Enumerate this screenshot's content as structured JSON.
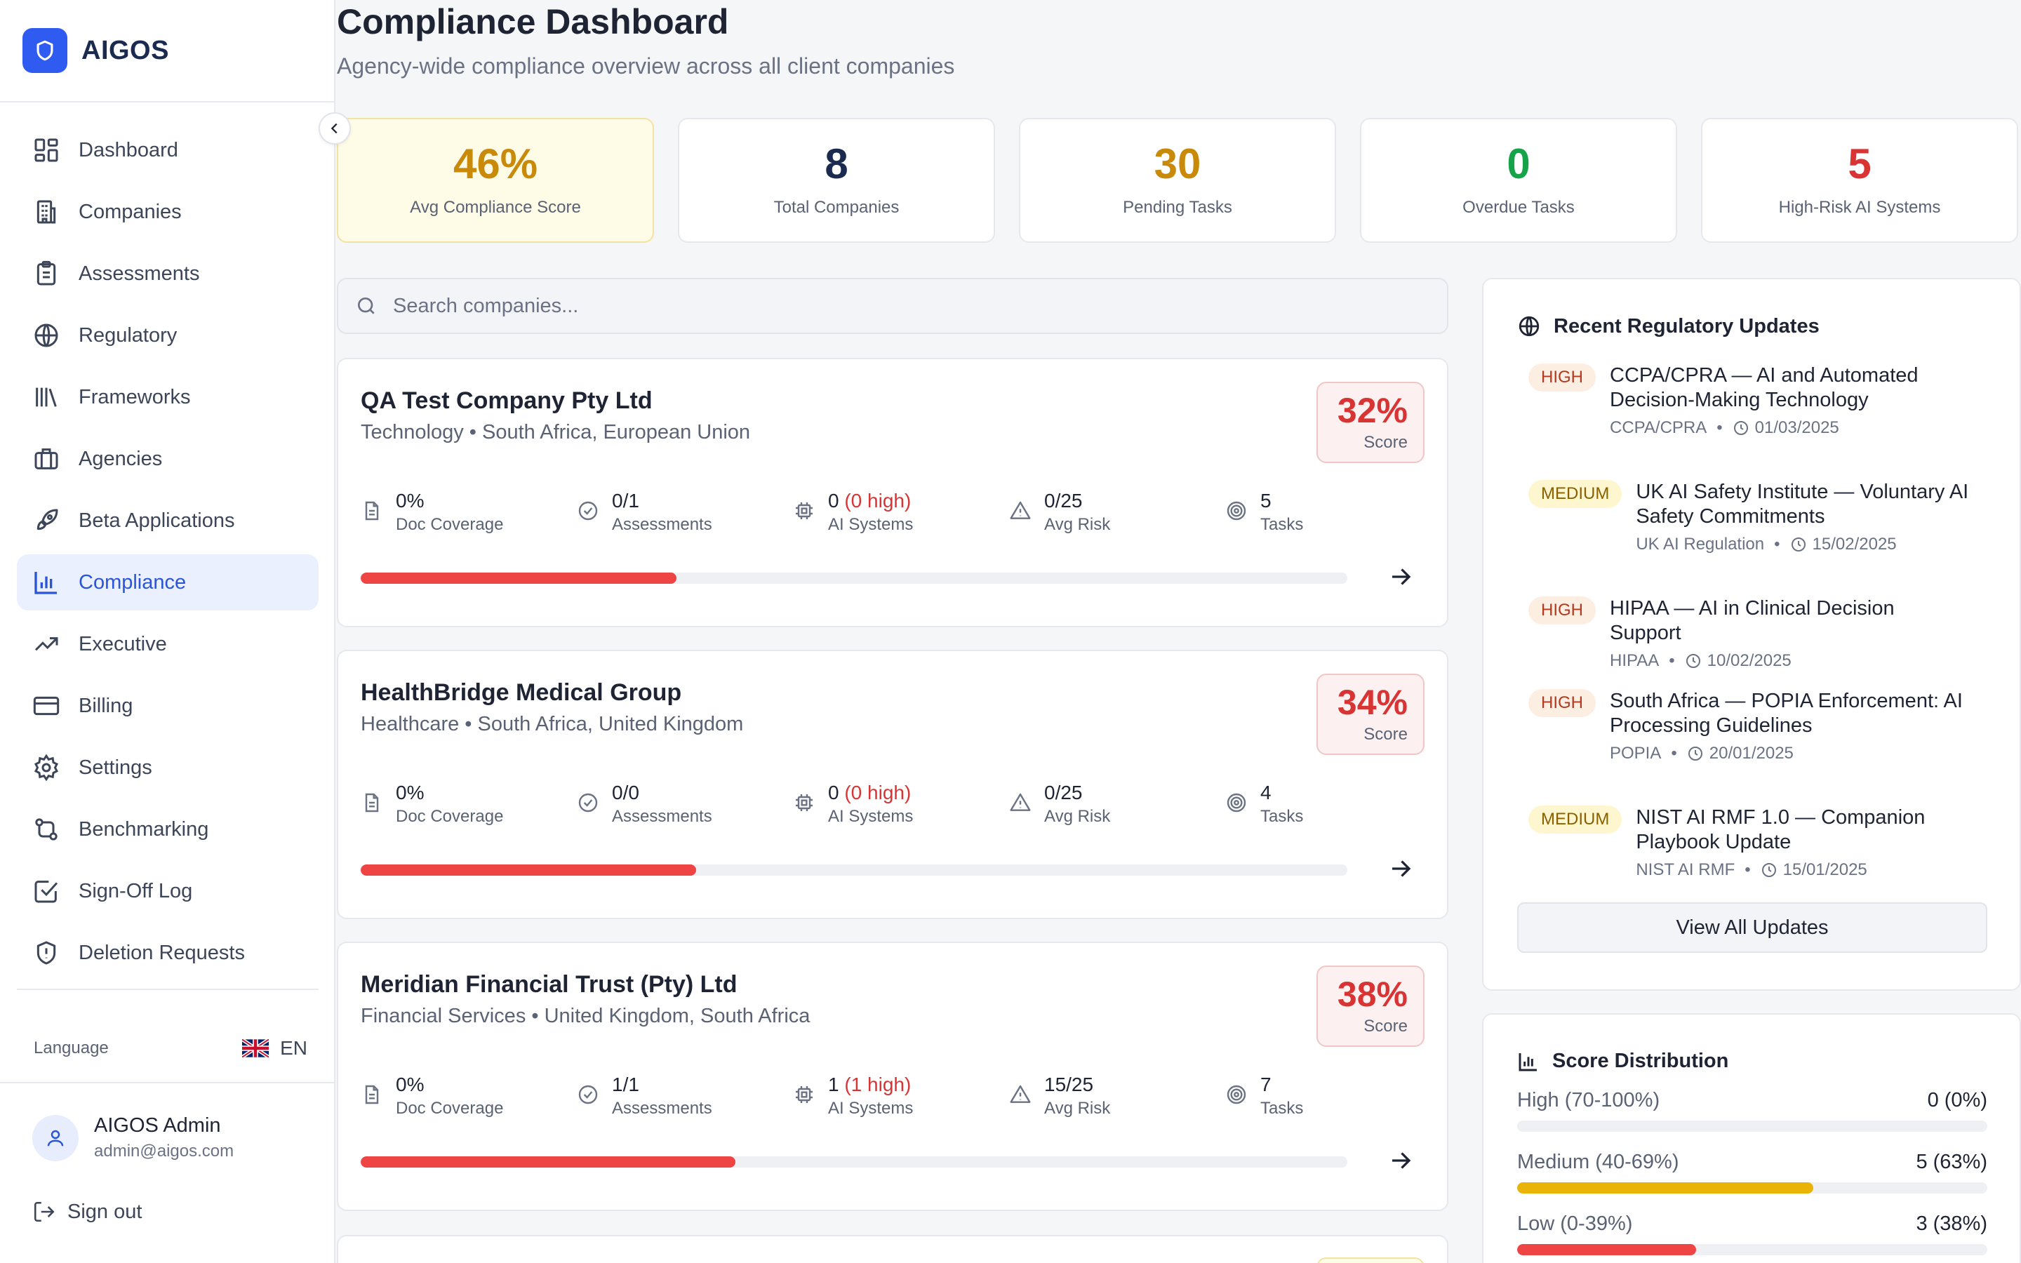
{
  "brand": {
    "name": "AIGOS",
    "logo_icon": "shield-icon",
    "accent": "#2f5bf0"
  },
  "sidebar": {
    "items": [
      {
        "label": "Dashboard",
        "icon": "dashboard-icon",
        "active": false
      },
      {
        "label": "Companies",
        "icon": "building-icon",
        "active": false
      },
      {
        "label": "Assessments",
        "icon": "clipboard-icon",
        "active": false
      },
      {
        "label": "Regulatory",
        "icon": "globe-icon",
        "active": false
      },
      {
        "label": "Frameworks",
        "icon": "library-icon",
        "active": false
      },
      {
        "label": "Agencies",
        "icon": "briefcase-icon",
        "active": false
      },
      {
        "label": "Beta Applications",
        "icon": "rocket-icon",
        "active": false
      },
      {
        "label": "Compliance",
        "icon": "bar-chart-icon",
        "active": true
      },
      {
        "label": "Executive",
        "icon": "trending-up-icon",
        "active": false
      },
      {
        "label": "Billing",
        "icon": "credit-card-icon",
        "active": false
      },
      {
        "label": "Settings",
        "icon": "gear-icon",
        "active": false
      },
      {
        "label": "Benchmarking",
        "icon": "git-compare-icon",
        "active": false
      },
      {
        "label": "Sign-Off Log",
        "icon": "check-square-icon",
        "active": false
      },
      {
        "label": "Deletion Requests",
        "icon": "shield-alert-icon",
        "active": false
      }
    ],
    "language": {
      "label": "Language",
      "value": "EN",
      "flag": "uk-flag-icon"
    },
    "user": {
      "name": "AIGOS Admin",
      "email": "admin@aigos.com"
    },
    "signout": "Sign out"
  },
  "header": {
    "title": "Compliance Dashboard",
    "subtitle": "Agency-wide compliance overview across all client companies"
  },
  "stats": [
    {
      "value": "46%",
      "label": "Avg Compliance Score",
      "color": "#c98a0a"
    },
    {
      "value": "8",
      "label": "Total Companies",
      "color": "#1a2b4f"
    },
    {
      "value": "30",
      "label": "Pending Tasks",
      "color": "#c98a0a"
    },
    {
      "value": "0",
      "label": "Overdue Tasks",
      "color": "#17a34a"
    },
    {
      "value": "5",
      "label": "High-Risk AI Systems",
      "color": "#d93434"
    }
  ],
  "search": {
    "placeholder": "Search companies..."
  },
  "metric_labels": {
    "docs": "Doc Coverage",
    "assessments": "Assessments",
    "ai": "AI Systems",
    "risk": "Avg Risk",
    "tasks": "Tasks",
    "score": "Score"
  },
  "companies": [
    {
      "name": "QA Test Company Pty Ltd",
      "meta": "Technology • South Africa, European Union",
      "score": "32%",
      "score_fraction": 0.32,
      "docs": "0%",
      "assessments": "0/1",
      "ai_count": "0",
      "ai_high": "(0 high)",
      "risk": "0/25",
      "tasks": "5"
    },
    {
      "name": "HealthBridge Medical Group",
      "meta": "Healthcare • South Africa, United Kingdom",
      "score": "34%",
      "score_fraction": 0.34,
      "docs": "0%",
      "assessments": "0/0",
      "ai_count": "0",
      "ai_high": "(0 high)",
      "risk": "0/25",
      "tasks": "4"
    },
    {
      "name": "Meridian Financial Trust (Pty) Ltd",
      "meta": "Financial Services • United Kingdom, South Africa",
      "score": "38%",
      "score_fraction": 0.38,
      "docs": "0%",
      "assessments": "1/1",
      "ai_count": "1",
      "ai_high": "(1 high)",
      "risk": "15/25",
      "tasks": "7"
    }
  ],
  "updates_panel": {
    "title": "Recent Regulatory Updates",
    "items": [
      {
        "severity": "HIGH",
        "level": "high",
        "title": "CCPA/CPRA — AI and Automated Decision-Making Technology",
        "source": "CCPA/CPRA",
        "date": "01/03/2025"
      },
      {
        "severity": "MEDIUM",
        "level": "medium",
        "title": "UK AI Safety Institute — Voluntary AI Safety Commitments",
        "source": "UK AI Regulation",
        "date": "15/02/2025"
      },
      {
        "severity": "HIGH",
        "level": "high",
        "title": "HIPAA — AI in Clinical Decision Support",
        "source": "HIPAA",
        "date": "10/02/2025"
      },
      {
        "severity": "HIGH",
        "level": "high",
        "title": "South Africa — POPIA Enforcement: AI Processing Guidelines",
        "source": "POPIA",
        "date": "20/01/2025"
      },
      {
        "severity": "MEDIUM",
        "level": "medium",
        "title": "NIST AI RMF 1.0 — Companion Playbook Update",
        "source": "NIST AI RMF",
        "date": "15/01/2025"
      }
    ],
    "view_all": "View All Updates"
  },
  "distribution_panel": {
    "title": "Score Distribution",
    "rows": [
      {
        "label": "High (70-100%)",
        "value": "0 (0%)",
        "fraction": 0,
        "color": "#17a34a"
      },
      {
        "label": "Medium (40-69%)",
        "value": "5 (63%)",
        "fraction": 0.63,
        "color": "#eab308"
      },
      {
        "label": "Low (0-39%)",
        "value": "3 (38%)",
        "fraction": 0.38,
        "color": "#ef4444"
      }
    ]
  }
}
